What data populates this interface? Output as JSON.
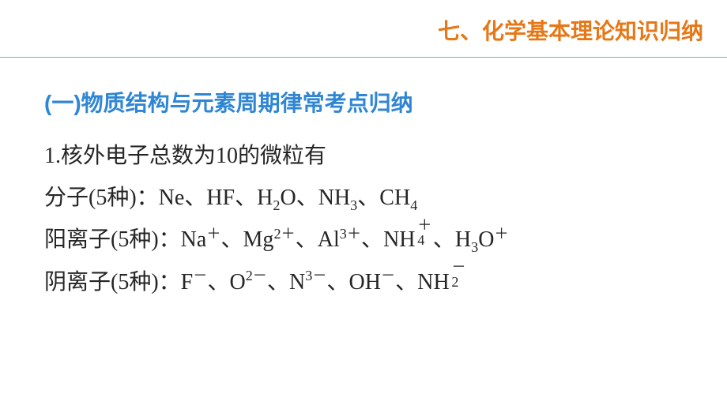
{
  "header": {
    "title": "七、化学基本理论知识归纳",
    "color": "#e67817",
    "divider_color": "#6eb8b6"
  },
  "subtitle": {
    "prefix": "(一)",
    "text": "物质结构与元素周期律常考点归纳",
    "prefix_color": "#2f86d4",
    "text_color": "#2f86d4"
  },
  "body_color": "#262626",
  "lines": {
    "l1": "1.核外电子总数为10的微粒有",
    "l2_label": "分子(5种)：",
    "l2_items": {
      "ne": "Ne",
      "hf": "HF",
      "h2o_h": "H",
      "h2o_sub": "2",
      "h2o_o": "O",
      "nh3_n": "NH",
      "nh3_sub": "3",
      "ch4_c": "CH",
      "ch4_sub": "4"
    },
    "l3_label": "阳离子(5种)：",
    "l3_items": {
      "na": "Na",
      "na_sup": "＋",
      "mg": "Mg",
      "mg_sup": "2＋",
      "al": "Al",
      "al_sup": "3＋",
      "nh4": "NH",
      "nh4_sup": "＋",
      "nh4_sub": "4",
      "h3o_h": "H",
      "h3o_sub": "3",
      "h3o_o": "O",
      "h3o_sup": "＋"
    },
    "l4_label": "阴离子(5种)：",
    "l4_items": {
      "f": "F",
      "f_sup": "－",
      "o": "O",
      "o_sup": "2－",
      "n": "N",
      "n_sup": "3－",
      "oh": "OH",
      "oh_sup": "－",
      "nh2": "NH",
      "nh2_sup": "－",
      "nh2_sub": "2"
    }
  },
  "sep": "、"
}
